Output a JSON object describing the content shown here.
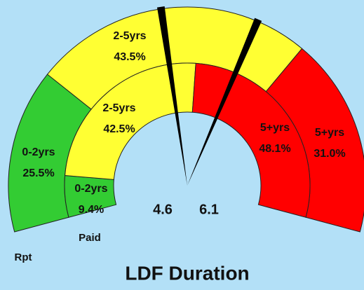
{
  "chart_data": {
    "type": "gauge",
    "title": "LDF Duration",
    "categories": [
      "0-2yrs",
      "2-5yrs",
      "5+yrs"
    ],
    "colors": [
      "#33cc33",
      "#ffff33",
      "#ff0000"
    ],
    "series": [
      {
        "name": "Rpt",
        "values": [
          25.5,
          43.5,
          31.0
        ],
        "value_labels": [
          "25.5%",
          "43.5%",
          "31.0%"
        ]
      },
      {
        "name": "Paid",
        "values": [
          9.4,
          42.5,
          48.1
        ],
        "value_labels": [
          "9.4%",
          "42.5%",
          "48.1%"
        ]
      }
    ],
    "needle_values": [
      4.6,
      6.1
    ],
    "ylim": [
      0,
      10
    ]
  }
}
